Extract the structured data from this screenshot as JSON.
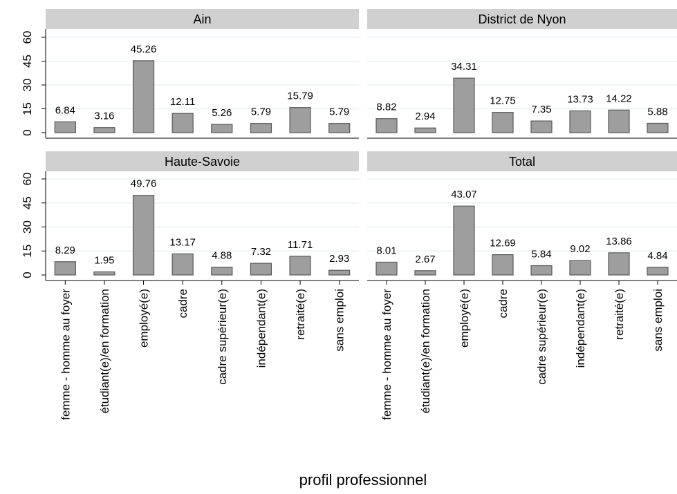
{
  "chart_data": {
    "type": "bar",
    "xlabel": "profil professionnel",
    "ylabel": "",
    "ylim": [
      0,
      60
    ],
    "yticks": [
      0,
      15,
      30,
      45,
      60
    ],
    "grid": true,
    "categories": [
      "femme - homme au foyer",
      "étudiant(e)/en formation",
      "employé(e)",
      "cadre",
      "cadre supérieur(e)",
      "indépendant(e)",
      "retraité(e)",
      "sans emploi"
    ],
    "panels": [
      {
        "title": "Ain",
        "values": [
          6.84,
          3.16,
          45.26,
          12.11,
          5.26,
          5.79,
          15.79,
          5.79
        ],
        "labels": [
          "6.84",
          "3.16",
          "45.26",
          "12.11",
          "5.26",
          "5.79",
          "15.79",
          "5.79"
        ]
      },
      {
        "title": "District de Nyon",
        "values": [
          8.82,
          2.94,
          34.31,
          12.75,
          7.35,
          13.73,
          14.22,
          5.88
        ],
        "labels": [
          "8.82",
          "2.94",
          "34.31",
          "12.75",
          "7.35",
          "13.73",
          "14.22",
          "5.88"
        ]
      },
      {
        "title": "Haute-Savoie",
        "values": [
          8.29,
          1.95,
          49.76,
          13.17,
          4.88,
          7.32,
          11.71,
          2.93
        ],
        "labels": [
          "8.29",
          "1.95",
          "49.76",
          "13.17",
          "4.88",
          "7.32",
          "11.71",
          "2.93"
        ]
      },
      {
        "title": "Total",
        "values": [
          8.01,
          2.67,
          43.07,
          12.69,
          5.84,
          9.02,
          13.86,
          4.84
        ],
        "labels": [
          "8.01",
          "2.67",
          "43.07",
          "12.69",
          "5.84",
          "9.02",
          "13.86",
          "4.84"
        ]
      }
    ],
    "colors": {
      "bar_fill": "#9e9e9e",
      "bar_stroke": "#595959",
      "header_fill": "#d0d0d0",
      "grid": "#e8eef0",
      "axis": "#000000"
    }
  }
}
